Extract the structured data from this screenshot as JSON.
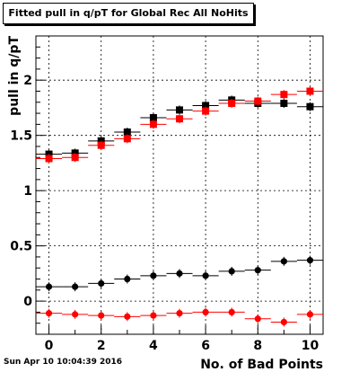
{
  "chart_data": {
    "type": "scatter",
    "title": "Fitted pull in q/pT for Global Rec All NoHits",
    "xlabel": "No. of Bad Points",
    "ylabel": "pull in q/pT",
    "xlim": [
      -0.5,
      10.5
    ],
    "ylim": [
      -0.3,
      2.4
    ],
    "x_ticks": [
      "0",
      "2",
      "4",
      "6",
      "8",
      "10"
    ],
    "y_ticks": [
      "0",
      "0.5",
      "1",
      "1.5",
      "2"
    ],
    "grid": true,
    "series": [
      {
        "marker": "square",
        "color": "#000000",
        "x": [
          0,
          1,
          2,
          3,
          4,
          5,
          6,
          7,
          8,
          9,
          10
        ],
        "values": [
          1.33,
          1.34,
          1.45,
          1.53,
          1.66,
          1.73,
          1.77,
          1.82,
          1.79,
          1.79,
          1.76
        ]
      },
      {
        "marker": "square",
        "color": "#ff0000",
        "x": [
          0,
          1,
          2,
          3,
          4,
          5,
          6,
          7,
          8,
          9,
          10
        ],
        "values": [
          1.29,
          1.3,
          1.41,
          1.47,
          1.6,
          1.65,
          1.72,
          1.79,
          1.81,
          1.87,
          1.9
        ]
      },
      {
        "marker": "circle",
        "color": "#000000",
        "x": [
          0,
          1,
          2,
          3,
          4,
          5,
          6,
          7,
          8,
          9,
          10
        ],
        "values": [
          0.13,
          0.13,
          0.16,
          0.2,
          0.23,
          0.25,
          0.23,
          0.27,
          0.28,
          0.36,
          0.37
        ]
      },
      {
        "marker": "circle",
        "color": "#ff0000",
        "x": [
          0,
          1,
          2,
          3,
          4,
          5,
          6,
          7,
          8,
          9,
          10
        ],
        "values": [
          -0.11,
          -0.12,
          -0.13,
          -0.14,
          -0.13,
          -0.11,
          -0.1,
          -0.1,
          -0.16,
          -0.19,
          -0.12
        ]
      }
    ]
  },
  "footer": {
    "date": "Sun Apr 10 10:04:39 2016"
  }
}
